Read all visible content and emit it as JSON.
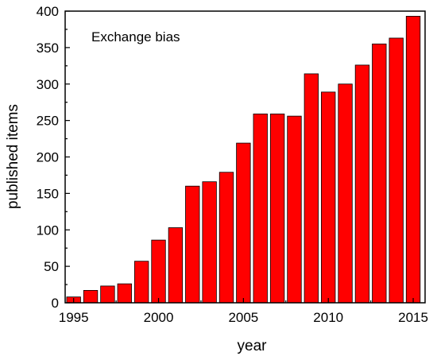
{
  "chart_data": {
    "type": "bar",
    "annotation": "Exchange bias",
    "xlabel": "year",
    "ylabel": "published items",
    "x": [
      1995,
      1996,
      1997,
      1998,
      1999,
      2000,
      2001,
      2002,
      2003,
      2004,
      2005,
      2006,
      2007,
      2008,
      2009,
      2010,
      2011,
      2012,
      2013,
      2014,
      2015
    ],
    "values": [
      8,
      17,
      23,
      26,
      57,
      86,
      103,
      160,
      166,
      179,
      219,
      259,
      259,
      256,
      314,
      289,
      300,
      326,
      355,
      363,
      393
    ],
    "xlim": [
      1994.5,
      2015.7
    ],
    "ylim": [
      0,
      400
    ],
    "xticks": [
      1995,
      2000,
      2005,
      2010,
      2015
    ],
    "yticks": [
      0,
      50,
      100,
      150,
      200,
      250,
      300,
      350,
      400
    ],
    "bar_color": "#ff0000",
    "bar_edge_color": "#000000",
    "grid": false,
    "legend": "none"
  }
}
